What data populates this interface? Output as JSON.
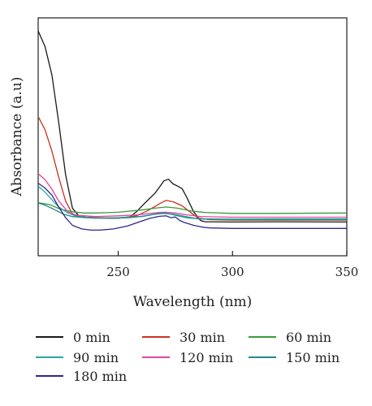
{
  "chart_data": {
    "type": "line",
    "title": "",
    "xlabel": "Wavelength (nm)",
    "ylabel": "Absorbance (a.u)",
    "xlim": [
      215,
      350
    ],
    "ylim": [
      0,
      1
    ],
    "x_ticks": [
      250,
      300,
      350
    ],
    "y_ticks": [],
    "grid": false,
    "legend_position": "bottom",
    "series": [
      {
        "name": "0 min",
        "color": "#1a1a1a",
        "points": [
          [
            215,
            0.945
          ],
          [
            218,
            0.88
          ],
          [
            221,
            0.76
          ],
          [
            224,
            0.56
          ],
          [
            227,
            0.34
          ],
          [
            230,
            0.2
          ],
          [
            233,
            0.165
          ],
          [
            236,
            0.162
          ],
          [
            240,
            0.16
          ],
          [
            245,
            0.158
          ],
          [
            250,
            0.158
          ],
          [
            255,
            0.162
          ],
          [
            258,
            0.185
          ],
          [
            262,
            0.225
          ],
          [
            266,
            0.262
          ],
          [
            268,
            0.288
          ],
          [
            270,
            0.315
          ],
          [
            272,
            0.322
          ],
          [
            274,
            0.302
          ],
          [
            276,
            0.293
          ],
          [
            278,
            0.282
          ],
          [
            280,
            0.245
          ],
          [
            283,
            0.185
          ],
          [
            286,
            0.148
          ],
          [
            288,
            0.143
          ],
          [
            300,
            0.142
          ],
          [
            320,
            0.143
          ],
          [
            350,
            0.142
          ]
        ]
      },
      {
        "name": "30 min",
        "color": "#c8311f",
        "points": [
          [
            215,
            0.585
          ],
          [
            218,
            0.53
          ],
          [
            221,
            0.44
          ],
          [
            224,
            0.33
          ],
          [
            227,
            0.23
          ],
          [
            230,
            0.175
          ],
          [
            234,
            0.162
          ],
          [
            240,
            0.16
          ],
          [
            250,
            0.158
          ],
          [
            258,
            0.168
          ],
          [
            263,
            0.19
          ],
          [
            268,
            0.218
          ],
          [
            271,
            0.233
          ],
          [
            274,
            0.227
          ],
          [
            278,
            0.21
          ],
          [
            282,
            0.18
          ],
          [
            285,
            0.158
          ],
          [
            290,
            0.152
          ],
          [
            300,
            0.15
          ],
          [
            320,
            0.15
          ],
          [
            350,
            0.15
          ]
        ]
      },
      {
        "name": "60 min",
        "color": "#3a9a3a",
        "points": [
          [
            215,
            0.223
          ],
          [
            220,
            0.215
          ],
          [
            225,
            0.195
          ],
          [
            230,
            0.185
          ],
          [
            235,
            0.18
          ],
          [
            240,
            0.18
          ],
          [
            250,
            0.183
          ],
          [
            260,
            0.192
          ],
          [
            266,
            0.2
          ],
          [
            271,
            0.205
          ],
          [
            276,
            0.2
          ],
          [
            282,
            0.188
          ],
          [
            288,
            0.182
          ],
          [
            300,
            0.178
          ],
          [
            320,
            0.178
          ],
          [
            350,
            0.18
          ]
        ]
      },
      {
        "name": "90 min",
        "color": "#2aa6a0",
        "points": [
          [
            215,
            0.292
          ],
          [
            218,
            0.268
          ],
          [
            221,
            0.235
          ],
          [
            224,
            0.205
          ],
          [
            228,
            0.18
          ],
          [
            232,
            0.165
          ],
          [
            240,
            0.158
          ],
          [
            250,
            0.16
          ],
          [
            260,
            0.165
          ],
          [
            266,
            0.175
          ],
          [
            270,
            0.178
          ],
          [
            274,
            0.175
          ],
          [
            278,
            0.168
          ],
          [
            285,
            0.155
          ],
          [
            300,
            0.152
          ],
          [
            320,
            0.152
          ],
          [
            350,
            0.152
          ]
        ]
      },
      {
        "name": "120 min",
        "color": "#e0469e",
        "points": [
          [
            215,
            0.345
          ],
          [
            218,
            0.32
          ],
          [
            221,
            0.28
          ],
          [
            224,
            0.23
          ],
          [
            228,
            0.185
          ],
          [
            232,
            0.17
          ],
          [
            240,
            0.165
          ],
          [
            250,
            0.168
          ],
          [
            258,
            0.172
          ],
          [
            263,
            0.177
          ],
          [
            268,
            0.182
          ],
          [
            271,
            0.183
          ],
          [
            275,
            0.18
          ],
          [
            280,
            0.172
          ],
          [
            286,
            0.165
          ],
          [
            300,
            0.162
          ],
          [
            320,
            0.162
          ],
          [
            350,
            0.162
          ]
        ]
      },
      {
        "name": "150 min",
        "color": "#1f8a8a",
        "points": [
          [
            215,
            0.222
          ],
          [
            218,
            0.213
          ],
          [
            222,
            0.195
          ],
          [
            226,
            0.175
          ],
          [
            230,
            0.165
          ],
          [
            236,
            0.16
          ],
          [
            245,
            0.158
          ],
          [
            255,
            0.16
          ],
          [
            262,
            0.168
          ],
          [
            266,
            0.175
          ],
          [
            270,
            0.18
          ],
          [
            273,
            0.175
          ],
          [
            276,
            0.168
          ],
          [
            280,
            0.16
          ],
          [
            286,
            0.155
          ],
          [
            300,
            0.154
          ],
          [
            320,
            0.155
          ],
          [
            350,
            0.155
          ]
        ]
      },
      {
        "name": "180 min",
        "color": "#2b2a8c",
        "points": [
          [
            215,
            0.305
          ],
          [
            218,
            0.285
          ],
          [
            221,
            0.255
          ],
          [
            224,
            0.205
          ],
          [
            227,
            0.16
          ],
          [
            230,
            0.128
          ],
          [
            234,
            0.113
          ],
          [
            238,
            0.108
          ],
          [
            242,
            0.108
          ],
          [
            248,
            0.113
          ],
          [
            254,
            0.125
          ],
          [
            260,
            0.145
          ],
          [
            264,
            0.158
          ],
          [
            268,
            0.166
          ],
          [
            271,
            0.168
          ],
          [
            273,
            0.16
          ],
          [
            275,
            0.163
          ],
          [
            277,
            0.148
          ],
          [
            279,
            0.14
          ],
          [
            283,
            0.128
          ],
          [
            287,
            0.12
          ],
          [
            290,
            0.117
          ],
          [
            300,
            0.115
          ],
          [
            320,
            0.115
          ],
          [
            350,
            0.115
          ]
        ]
      }
    ]
  },
  "legend": {
    "items": [
      {
        "label": "0 min",
        "color": "#1a1a1a"
      },
      {
        "label": "30 min",
        "color": "#c8311f"
      },
      {
        "label": "60 min",
        "color": "#3a9a3a"
      },
      {
        "label": "90 min",
        "color": "#2aa6a0"
      },
      {
        "label": "120 min",
        "color": "#e0469e"
      },
      {
        "label": "150 min",
        "color": "#1f8a8a"
      },
      {
        "label": "180 min",
        "color": "#2b2a8c"
      }
    ]
  }
}
